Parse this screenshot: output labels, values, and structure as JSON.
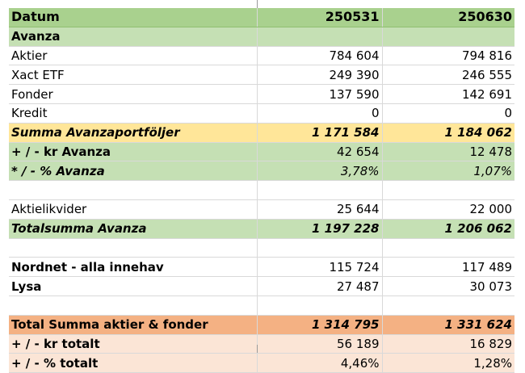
{
  "header": {
    "label": "Datum",
    "col_a": "250531",
    "col_b": "250630"
  },
  "section_avanza": "Avanza",
  "rows_avanza": [
    {
      "label": "Aktier",
      "a": "784 604",
      "b": "794 816"
    },
    {
      "label": "Xact ETF",
      "a": "249 390",
      "b": "246 555"
    },
    {
      "label": "Fonder",
      "a": "137 590",
      "b": "142 691"
    },
    {
      "label": "Kredit",
      "a": "0",
      "b": "0"
    }
  ],
  "summa_avanza": {
    "label": "Summa Avanzaportföljer",
    "a": "1 171 584",
    "b": "1 184 062"
  },
  "kr_avanza": {
    "label": "+ / - kr Avanza",
    "a": "42 654",
    "b": "12 478"
  },
  "pct_avanza": {
    "label": "* / - % Avanza",
    "a": "3,78%",
    "b": "1,07%"
  },
  "aktielikvider": {
    "label": "Aktielikvider",
    "a": "25 644",
    "b": "22 000"
  },
  "totalsumma_avanza": {
    "label": "Totalsumma Avanza",
    "a": "1 197 228",
    "b": "1 206 062"
  },
  "nordnet": {
    "label": "Nordnet - alla innehav",
    "a": "115 724",
    "b": "117 489"
  },
  "lysa": {
    "label": "Lysa",
    "a": "27 487",
    "b": "30 073"
  },
  "total_summa": {
    "label": "Total Summa aktier & fonder",
    "a": "1 314 795",
    "b": "1 331 624"
  },
  "kr_totalt": {
    "label": "+ / - kr totalt",
    "a": "56 189",
    "b": "16 829"
  },
  "pct_totalt": {
    "label": "+ / - % totalt",
    "a": "4,46%",
    "b": "1,28%"
  },
  "colors": {
    "header_green": "#a9d18e",
    "section_green": "#c5e0b4",
    "sum_yellow": "#ffe699",
    "total_orange": "#f4b183",
    "total_peach": "#fbe5d6",
    "grid": "#d9d9d9"
  }
}
